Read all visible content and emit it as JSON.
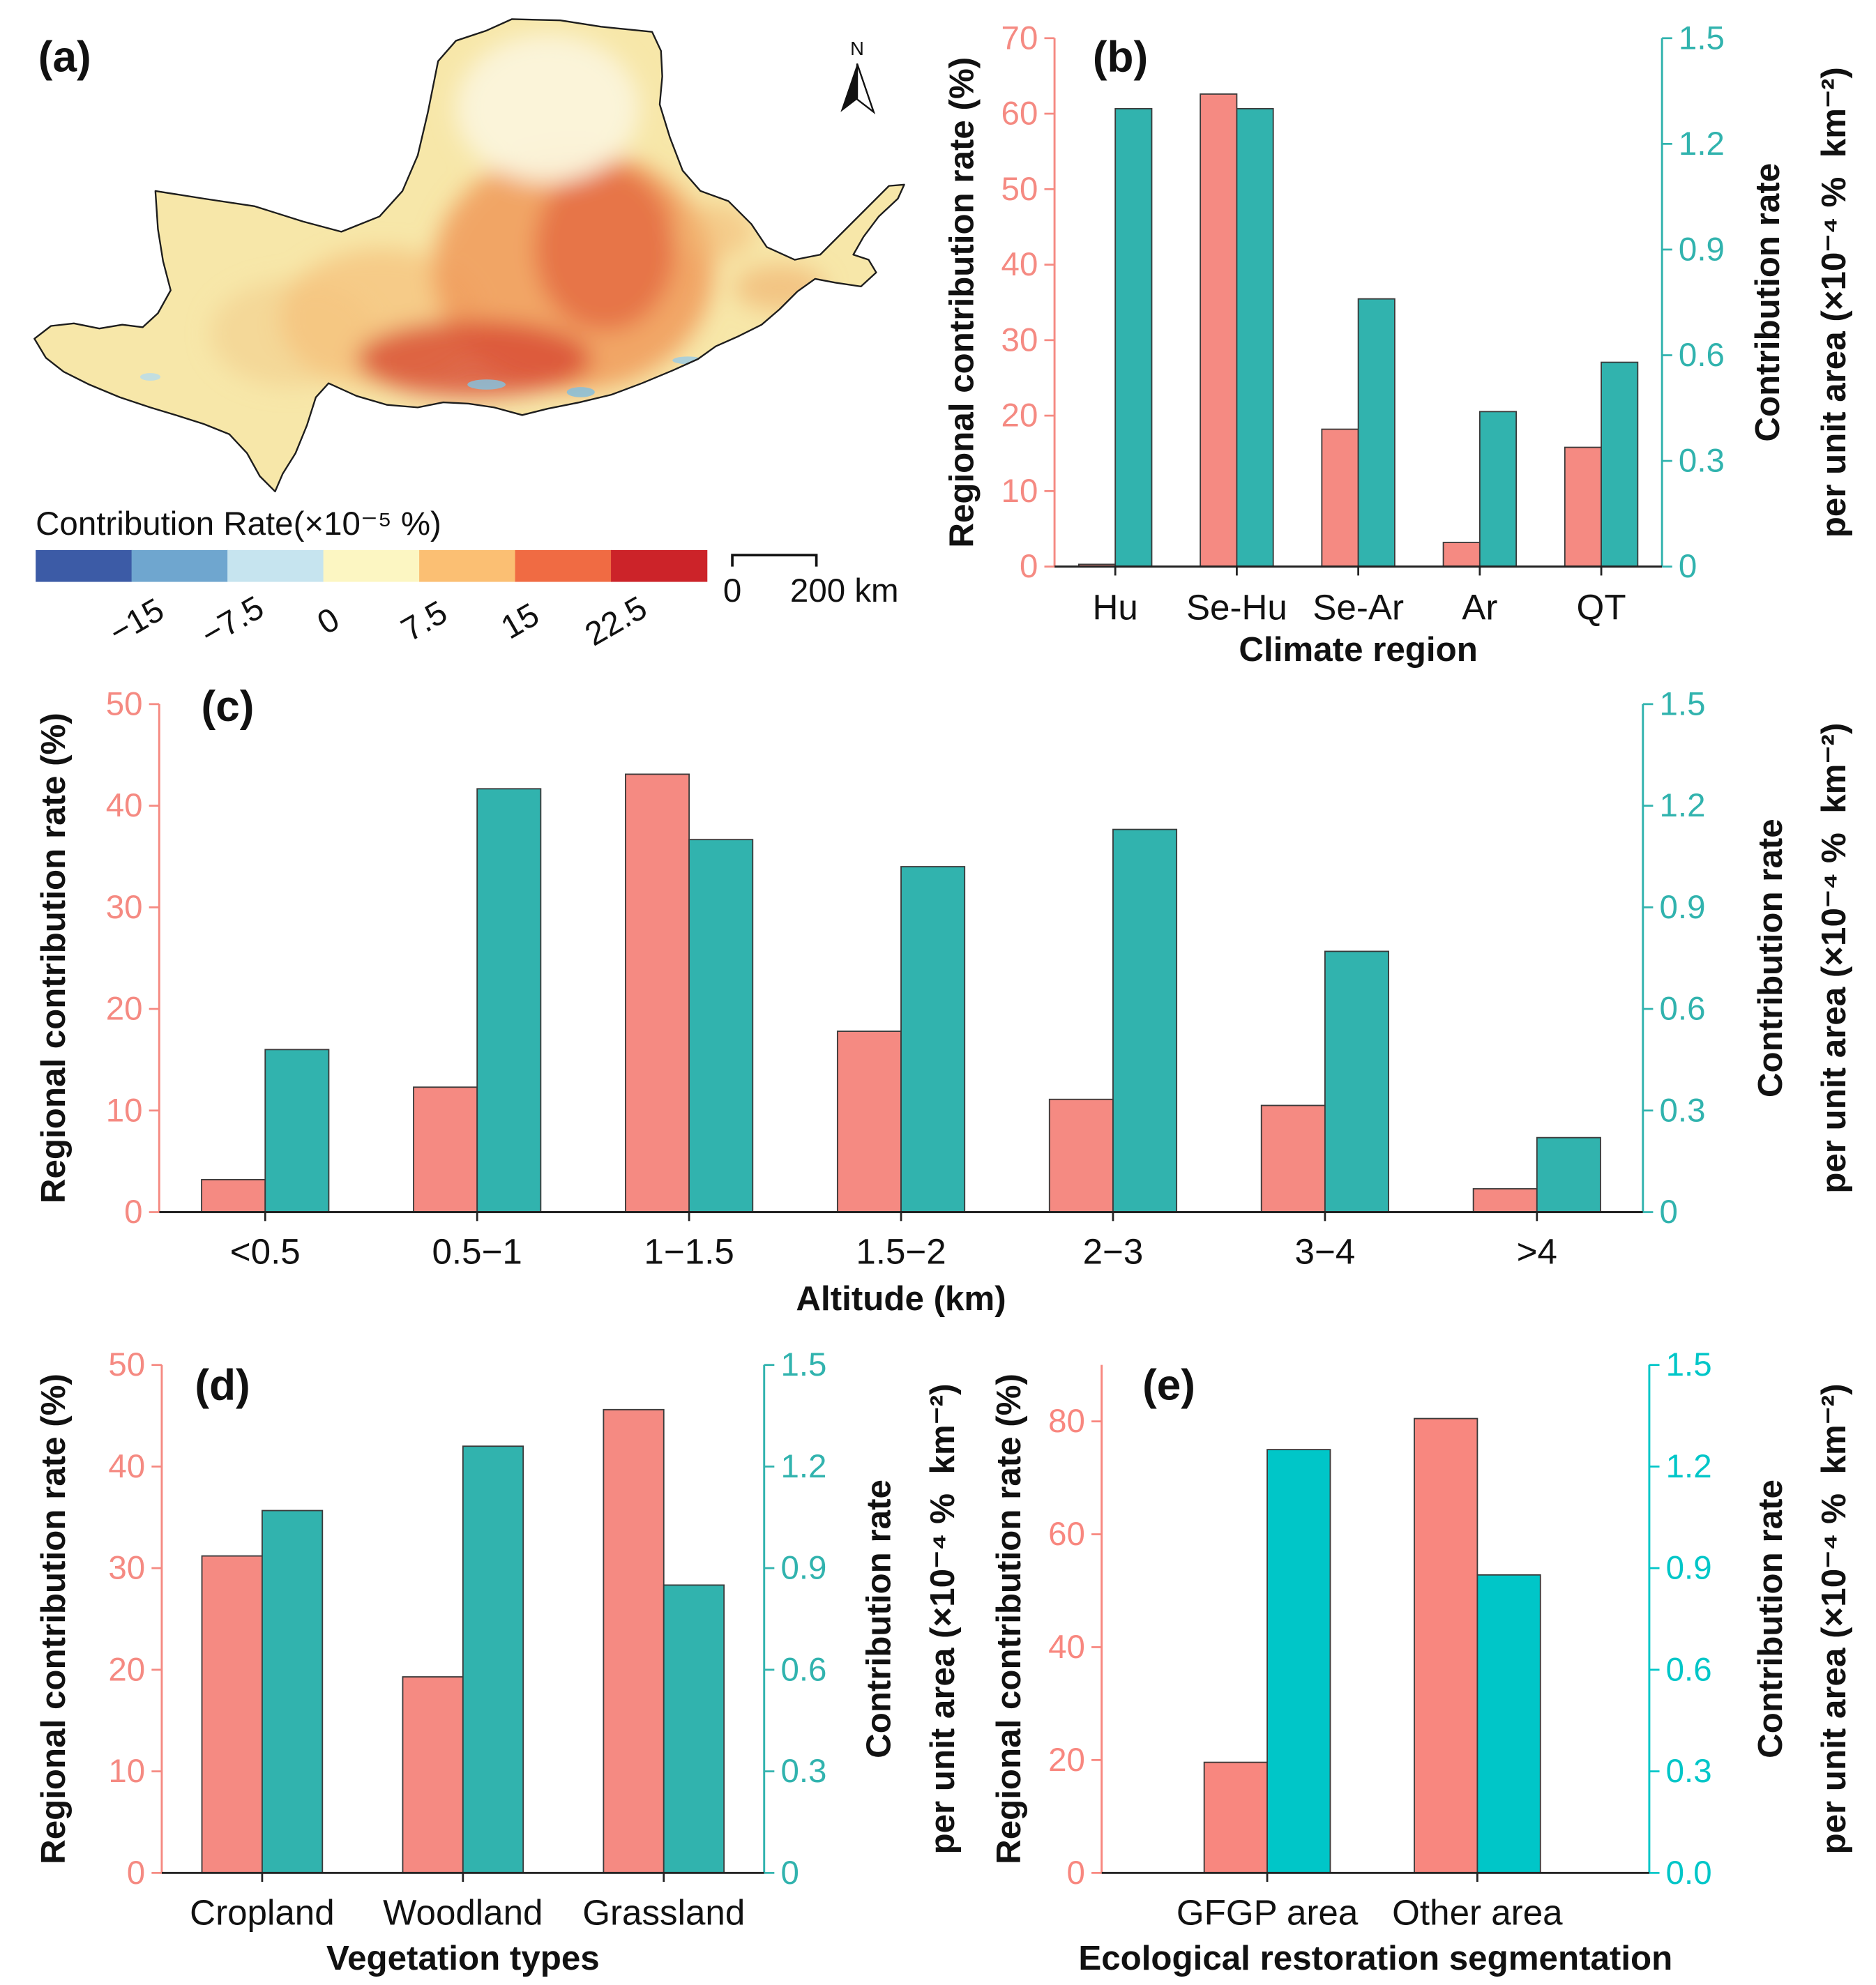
{
  "panel_a": {
    "label": "(a)",
    "north_arrow_label": "N",
    "colorbar": {
      "title": "Contribution Rate(×10⁻⁵ %)",
      "colors": [
        "#3c5ba6",
        "#6fa6cf",
        "#c6e4ef",
        "#fcf6c2",
        "#fbbf73",
        "#f06b43",
        "#cc2329"
      ],
      "tick_labels": [
        "−15",
        "−7.5",
        "0",
        "7.5",
        "15",
        "22.5"
      ]
    },
    "scale_bar": {
      "start_label": "0",
      "end_label": "200 km"
    }
  },
  "chart_data": [
    {
      "panel_label": "(b)",
      "type": "bar",
      "xlabel": "Climate region",
      "categories": [
        "Hu",
        "Se-Hu",
        "Se-Ar",
        "Ar",
        "QT"
      ],
      "ylabel_left": "Regional contribution rate (%)",
      "ylabel_right": [
        "Contribution rate",
        "per unit area (×10⁻⁴ %  km⁻²)"
      ],
      "ylim_left": [
        0,
        70
      ],
      "yticks_left": [
        "0",
        "10",
        "20",
        "30",
        "40",
        "50",
        "60",
        "70"
      ],
      "ylim_right": [
        0,
        1.5
      ],
      "yticks_right": [
        "0",
        "0.3",
        "0.6",
        "0.9",
        "1.2",
        "1.5"
      ],
      "left_series": {
        "color": "#f58a82",
        "values": [
          0.3,
          62.6,
          18.2,
          3.2,
          15.8
        ]
      },
      "right_series": {
        "color": "#31b3ae",
        "values": [
          1.3,
          1.3,
          0.76,
          0.44,
          0.58
        ]
      },
      "left_axis_color": "#f58a82",
      "right_axis_color": "#31b3ae"
    },
    {
      "panel_label": "(c)",
      "type": "bar",
      "xlabel": "Altitude (km)",
      "categories": [
        "<0.5",
        "0.5−1",
        "1−1.5",
        "1.5−2",
        "2−3",
        "3−4",
        ">4"
      ],
      "ylabel_left": "Regional contribution rate (%)",
      "ylabel_right": [
        "Contribution rate",
        "per unit area (×10⁻⁴ %  km⁻²)"
      ],
      "ylim_left": [
        0,
        50
      ],
      "yticks_left": [
        "0",
        "10",
        "20",
        "30",
        "40",
        "50"
      ],
      "ylim_right": [
        0,
        1.5
      ],
      "yticks_right": [
        "0",
        "0.3",
        "0.6",
        "0.9",
        "1.2",
        "1.5"
      ],
      "left_series": {
        "color": "#f58a82",
        "values": [
          3.2,
          12.3,
          43.1,
          17.8,
          11.1,
          10.5,
          2.3
        ]
      },
      "right_series": {
        "color": "#31b3ae",
        "values": [
          0.48,
          1.25,
          1.1,
          1.02,
          1.13,
          0.77,
          0.22
        ]
      },
      "left_axis_color": "#f58a82",
      "right_axis_color": "#31b3ae"
    },
    {
      "panel_label": "(d)",
      "type": "bar",
      "xlabel": "Vegetation types",
      "categories": [
        "Cropland",
        "Woodland",
        "Grassland"
      ],
      "ylabel_left": "Regional contribution rate (%)",
      "ylabel_right": [
        "Contribution rate",
        "per unit area (×10⁻⁴ %  km⁻²)"
      ],
      "ylim_left": [
        0,
        50
      ],
      "yticks_left": [
        "0",
        "10",
        "20",
        "30",
        "40",
        "50"
      ],
      "ylim_right": [
        0,
        1.5
      ],
      "yticks_right": [
        "0",
        "0.3",
        "0.6",
        "0.9",
        "1.2",
        "1.5"
      ],
      "left_series": {
        "color": "#f58a82",
        "values": [
          31.2,
          19.3,
          45.6
        ]
      },
      "right_series": {
        "color": "#31b3ae",
        "values": [
          1.07,
          1.26,
          0.85
        ]
      },
      "left_axis_color": "#f58a82",
      "right_axis_color": "#31b3ae"
    },
    {
      "panel_label": "(e)",
      "type": "bar",
      "xlabel": "Ecological restoration segmentation",
      "categories": [
        "GFGP area",
        "Other area"
      ],
      "ylabel_left": "Regional contribution rate (%)",
      "ylabel_right": [
        "Contribution rate",
        "per unit area (×10⁻⁴ %  km⁻²)"
      ],
      "ylim_left": [
        0,
        90
      ],
      "yticks_left": [
        "0",
        "20",
        "40",
        "60",
        "80"
      ],
      "ylim_right": [
        0,
        1.5
      ],
      "yticks_right": [
        "0.0",
        "0.3",
        "0.6",
        "0.9",
        "1.2",
        "1.5"
      ],
      "left_series": {
        "color": "#f8877f",
        "values": [
          19.6,
          80.5
        ]
      },
      "right_series": {
        "color": "#00c6c8",
        "values": [
          1.25,
          0.88
        ]
      },
      "left_axis_color": "#f8877f",
      "right_axis_color": "#00c6c8"
    }
  ]
}
